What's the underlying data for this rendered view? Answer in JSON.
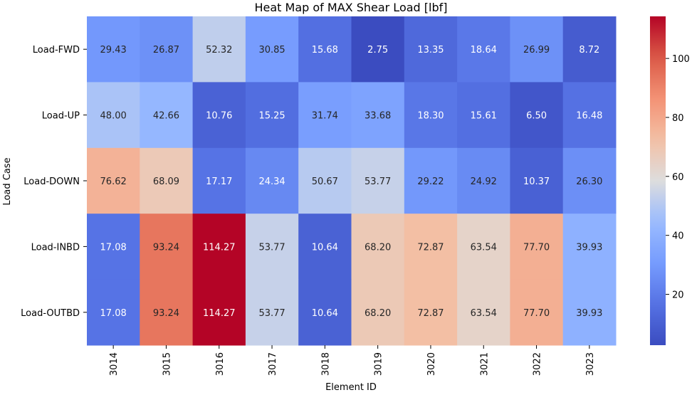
{
  "chart_data": {
    "type": "heatmap",
    "title": "Heat Map of MAX Shear Load [lbf]",
    "xlabel": "Element ID",
    "ylabel": "Load Case",
    "x_categories": [
      "3014",
      "3015",
      "3016",
      "3017",
      "3018",
      "3019",
      "3020",
      "3021",
      "3022",
      "3023"
    ],
    "y_categories": [
      "Load-FWD",
      "Load-UP",
      "Load-DOWN",
      "Load-INBD",
      "Load-OUTBD"
    ],
    "values": [
      [
        29.43,
        26.87,
        52.32,
        30.85,
        15.68,
        2.75,
        13.35,
        18.64,
        26.99,
        8.72
      ],
      [
        48.0,
        42.66,
        10.76,
        15.25,
        31.74,
        33.68,
        18.3,
        15.61,
        6.5,
        16.48
      ],
      [
        76.62,
        68.09,
        17.17,
        24.34,
        50.67,
        53.77,
        29.22,
        24.92,
        10.37,
        26.3
      ],
      [
        17.08,
        93.24,
        114.27,
        53.77,
        10.64,
        68.2,
        72.87,
        63.54,
        77.7,
        39.93
      ],
      [
        17.08,
        93.24,
        114.27,
        53.77,
        10.64,
        68.2,
        72.87,
        63.54,
        77.7,
        39.93
      ]
    ],
    "value_format": "2 decimals",
    "colormap": "coolwarm",
    "color_range": [
      2.75,
      114.27
    ],
    "colorbar_ticks": [
      20,
      40,
      60,
      80,
      100
    ],
    "colorbar_position": "right"
  }
}
